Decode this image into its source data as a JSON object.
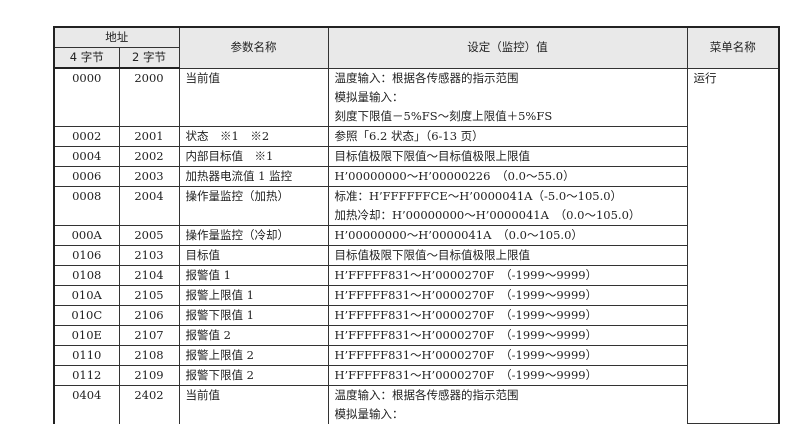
{
  "header": {
    "address": "地址",
    "bytes4": "4 字节",
    "bytes2": "2 字节",
    "param_name": "参数名称",
    "setting": "设定（监控）值",
    "menu_name": "菜单名称"
  },
  "rows": [
    {
      "a4": "0000",
      "a2": "2000",
      "name": "当前值",
      "value": [
        "温度输入：根据各传感器的指示范围",
        "模拟量输入：",
        "刻度下限值－5%FS～刻度上限值＋5%FS"
      ],
      "menu": "运行"
    },
    {
      "a4": "0002",
      "a2": "2001",
      "name": "状态　※1　※2",
      "value": [
        "参照「6.2 状态」（6-13 页）"
      ]
    },
    {
      "a4": "0004",
      "a2": "2002",
      "name": "内部目标值　※1",
      "value": [
        "目标值极限下限值～目标值极限上限值"
      ]
    },
    {
      "a4": "0006",
      "a2": "2003",
      "name": "加热器电流值 1 监控",
      "value": [
        "H’00000000～H’00000226　（0.0～55.0）"
      ]
    },
    {
      "a4": "0008",
      "a2": "2004",
      "name": "操作量监控（加热）",
      "value": [
        "标准：H’FFFFFFCE～H’0000041A（-5.0～105.0）",
        "加热冷却：H’00000000～H’0000041A　（0.0～105.0）"
      ]
    },
    {
      "a4": "000A",
      "a2": "2005",
      "name": "操作量监控（冷却）",
      "value": [
        "H’00000000～H’0000041A　（0.0～105.0）"
      ]
    },
    {
      "a4": "0106",
      "a2": "2103",
      "name": "目标值",
      "value": [
        "目标值极限下限值～目标值极限上限值"
      ]
    },
    {
      "a4": "0108",
      "a2": "2104",
      "name": "报警值 1",
      "value": [
        "H’FFFFF831～H’0000270F　（-1999～9999）"
      ]
    },
    {
      "a4": "010A",
      "a2": "2105",
      "name": "报警上限值 1",
      "value": [
        "H’FFFFF831～H’0000270F　（-1999～9999）"
      ]
    },
    {
      "a4": "010C",
      "a2": "2106",
      "name": "报警下限值 1",
      "value": [
        "H’FFFFF831～H’0000270F　（-1999～9999）"
      ]
    },
    {
      "a4": "010E",
      "a2": "2107",
      "name": "报警值 2",
      "value": [
        "H’FFFFF831～H’0000270F　（-1999～9999）"
      ]
    },
    {
      "a4": "0110",
      "a2": "2108",
      "name": "报警上限值 2",
      "value": [
        "H’FFFFF831～H’0000270F　（-1999～9999）"
      ]
    },
    {
      "a4": "0112",
      "a2": "2109",
      "name": "报警下限值 2",
      "value": [
        "H’FFFFF831～H’0000270F　（-1999～9999）"
      ]
    },
    {
      "a4": "0404",
      "a2": "2402",
      "name": "当前值",
      "value": [
        "温度输入：根据各传感器的指示范围",
        "模拟量输入："
      ]
    }
  ]
}
